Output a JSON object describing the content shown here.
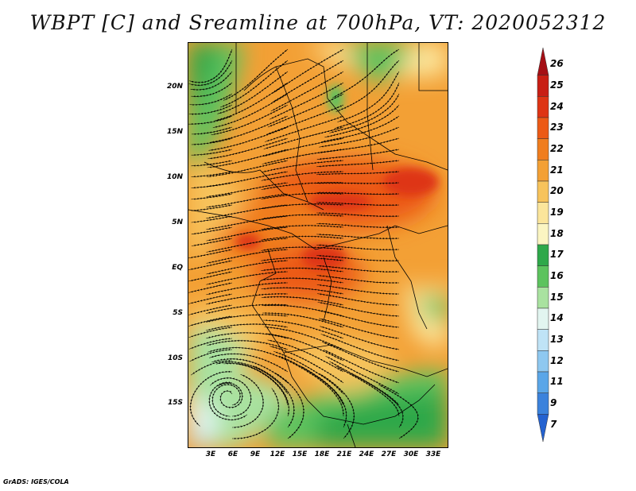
{
  "title": "WBPT [C] and Sreamline at 700hPa, VT: 2020052312",
  "credit": "GrADS: IGES/COLA",
  "map": {
    "lat_labels": [
      "20N",
      "15N",
      "10N",
      "5N",
      "EQ",
      "5S",
      "10S",
      "15S"
    ],
    "lon_labels": [
      "3E",
      "6E",
      "9E",
      "12E",
      "15E",
      "18E",
      "21E",
      "24E",
      "27E",
      "30E",
      "33E"
    ],
    "lat_range": [
      -20,
      24
    ],
    "lon_range": [
      0,
      35
    ]
  },
  "colorbar": {
    "labels": [
      "26",
      "25",
      "24",
      "23",
      "22",
      "21",
      "20",
      "19",
      "18",
      "17",
      "16",
      "15",
      "14",
      "13",
      "12",
      "11",
      "9",
      "7"
    ],
    "colors": [
      "#a50f15",
      "#c81e14",
      "#de3414",
      "#ec5a16",
      "#f07d1e",
      "#f3a035",
      "#f7c35b",
      "#fbe59b",
      "#fbf5c2",
      "#2ea84a",
      "#5cc35e",
      "#a9e2a0",
      "#e2f5f0",
      "#bfe3f6",
      "#8ec8f0",
      "#5aa6e8",
      "#3b82dc",
      "#2462d0"
    ]
  }
}
